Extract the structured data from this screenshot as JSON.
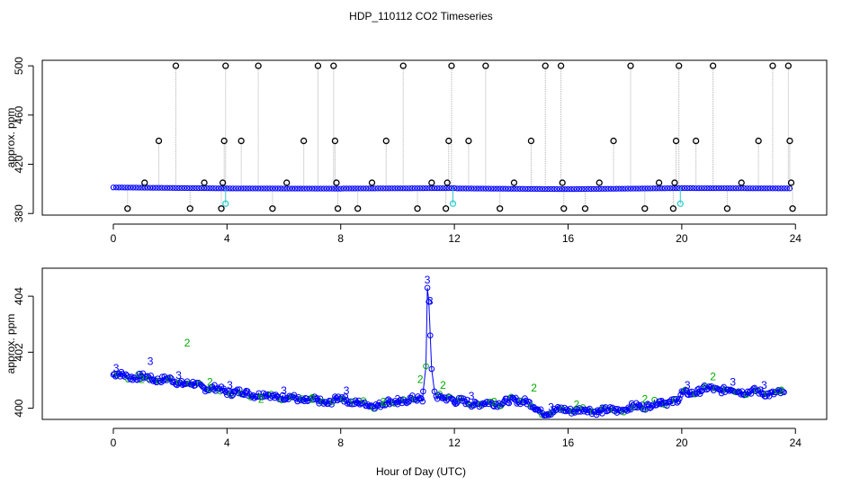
{
  "title": "HDP_110112  CO2 Timeseries",
  "colors": {
    "background": "#ffffff",
    "axis": "#000000",
    "spike_line": "#b0b0b0",
    "open_circle": "#000000",
    "series_main": "#0000ff",
    "series_alt": "#00aa00",
    "cyan_marker": "#33cccc"
  },
  "chart_data": [
    {
      "type": "scatter",
      "title": "",
      "xlabel": "",
      "ylabel": "approx. ppm",
      "xlim": [
        -2.5,
        25.1
      ],
      "ylim": [
        378.7,
        504.5
      ],
      "x_ticks": [
        0,
        4,
        8,
        12,
        16,
        20,
        24
      ],
      "y_ticks": [
        380,
        420,
        460,
        500
      ],
      "grid": false,
      "baseline_series": {
        "name": "ppm",
        "x_start": 0,
        "x_end": 23.8,
        "step": 0.1,
        "segments": [
          {
            "x0": 0,
            "x1": 4,
            "y0": 401.2,
            "y1": 400.4
          },
          {
            "x0": 4,
            "x1": 8,
            "y0": 400.4,
            "y1": 400.2
          },
          {
            "x0": 8,
            "x1": 12,
            "y0": 400.3,
            "y1": 400.6
          },
          {
            "x0": 12,
            "x1": 16,
            "y0": 400.4,
            "y1": 399.8
          },
          {
            "x0": 16,
            "x1": 20,
            "y0": 399.8,
            "y1": 400.6
          },
          {
            "x0": 20,
            "x1": 24,
            "y0": 400.6,
            "y1": 400.4
          }
        ]
      },
      "spikes": [
        {
          "x": 0.5,
          "y": 384
        },
        {
          "x": 1.1,
          "y": 405
        },
        {
          "x": 1.6,
          "y": 439
        },
        {
          "x": 2.2,
          "y": 500
        },
        {
          "x": 2.7,
          "y": 384
        },
        {
          "x": 3.2,
          "y": 405
        },
        {
          "x": 3.8,
          "y": 384
        },
        {
          "x": 3.85,
          "y": 405
        },
        {
          "x": 3.9,
          "y": 439
        },
        {
          "x": 3.95,
          "y": 500
        },
        {
          "x": 4.5,
          "y": 439
        },
        {
          "x": 5.1,
          "y": 500
        },
        {
          "x": 5.6,
          "y": 384
        },
        {
          "x": 6.1,
          "y": 405
        },
        {
          "x": 6.7,
          "y": 439
        },
        {
          "x": 7.2,
          "y": 500
        },
        {
          "x": 7.75,
          "y": 500
        },
        {
          "x": 7.8,
          "y": 439
        },
        {
          "x": 7.85,
          "y": 405
        },
        {
          "x": 7.9,
          "y": 384
        },
        {
          "x": 8.6,
          "y": 384
        },
        {
          "x": 9.1,
          "y": 405
        },
        {
          "x": 9.6,
          "y": 439
        },
        {
          "x": 10.2,
          "y": 500
        },
        {
          "x": 10.7,
          "y": 384
        },
        {
          "x": 11.2,
          "y": 405
        },
        {
          "x": 11.7,
          "y": 384
        },
        {
          "x": 11.75,
          "y": 405
        },
        {
          "x": 11.8,
          "y": 439
        },
        {
          "x": 11.9,
          "y": 500
        },
        {
          "x": 12.5,
          "y": 439
        },
        {
          "x": 13.1,
          "y": 500
        },
        {
          "x": 13.6,
          "y": 384
        },
        {
          "x": 14.1,
          "y": 405
        },
        {
          "x": 14.7,
          "y": 439
        },
        {
          "x": 15.2,
          "y": 500
        },
        {
          "x": 15.75,
          "y": 500
        },
        {
          "x": 15.8,
          "y": 405
        },
        {
          "x": 15.85,
          "y": 384
        },
        {
          "x": 16.6,
          "y": 384
        },
        {
          "x": 17.1,
          "y": 405
        },
        {
          "x": 17.6,
          "y": 439
        },
        {
          "x": 18.2,
          "y": 500
        },
        {
          "x": 18.7,
          "y": 384
        },
        {
          "x": 19.2,
          "y": 405
        },
        {
          "x": 19.7,
          "y": 384
        },
        {
          "x": 19.75,
          "y": 405
        },
        {
          "x": 19.8,
          "y": 439
        },
        {
          "x": 19.9,
          "y": 500
        },
        {
          "x": 20.5,
          "y": 439
        },
        {
          "x": 21.1,
          "y": 500
        },
        {
          "x": 21.6,
          "y": 384
        },
        {
          "x": 22.1,
          "y": 405
        },
        {
          "x": 22.7,
          "y": 439
        },
        {
          "x": 23.2,
          "y": 500
        },
        {
          "x": 23.75,
          "y": 500
        },
        {
          "x": 23.8,
          "y": 439
        },
        {
          "x": 23.85,
          "y": 405
        },
        {
          "x": 23.9,
          "y": 384
        }
      ],
      "cyan_points": [
        {
          "x": 3.95,
          "y": 388
        },
        {
          "x": 11.95,
          "y": 388
        },
        {
          "x": 19.95,
          "y": 388
        }
      ]
    },
    {
      "type": "scatter",
      "title": "",
      "xlabel": "Hour of Day (UTC)",
      "ylabel": "approx. ppm",
      "xlim": [
        -2.5,
        25.1
      ],
      "ylim": [
        399.6,
        405.0
      ],
      "x_ticks": [
        0,
        4,
        8,
        12,
        16,
        20,
        24
      ],
      "y_ticks": [
        400,
        402,
        404
      ],
      "grid": false,
      "series": [
        {
          "name": "3",
          "color": "#0000ff",
          "marker": "circle"
        },
        {
          "name": "2",
          "color": "#00aa00",
          "marker": "circle"
        }
      ],
      "trend": [
        {
          "x": 0,
          "y": 401.2
        },
        {
          "x": 2,
          "y": 401.0
        },
        {
          "x": 4,
          "y": 400.6
        },
        {
          "x": 6,
          "y": 400.4
        },
        {
          "x": 7.5,
          "y": 400.2
        },
        {
          "x": 8,
          "y": 400.35
        },
        {
          "x": 9,
          "y": 400.1
        },
        {
          "x": 10.5,
          "y": 400.3
        },
        {
          "x": 11.9,
          "y": 400.4
        },
        {
          "x": 12,
          "y": 400.25
        },
        {
          "x": 13,
          "y": 400.15
        },
        {
          "x": 14.5,
          "y": 400.3
        },
        {
          "x": 15,
          "y": 399.85
        },
        {
          "x": 16,
          "y": 399.95
        },
        {
          "x": 17.5,
          "y": 399.9
        },
        {
          "x": 19.9,
          "y": 400.3
        },
        {
          "x": 20,
          "y": 400.5
        },
        {
          "x": 21,
          "y": 400.7
        },
        {
          "x": 23.6,
          "y": 400.5
        }
      ],
      "spike_points": [
        {
          "x": 10.9,
          "y": 400.6
        },
        {
          "x": 11.0,
          "y": 401.5
        },
        {
          "x": 11.05,
          "y": 404.3
        },
        {
          "x": 11.1,
          "y": 403.8
        },
        {
          "x": 11.15,
          "y": 402.6
        },
        {
          "x": 11.2,
          "y": 401.4
        },
        {
          "x": 11.3,
          "y": 400.6
        }
      ],
      "labels": [
        {
          "text": "3",
          "x": 11.05,
          "y": 404.45,
          "series": "3"
        },
        {
          "text": "3",
          "x": 11.15,
          "y": 403.7,
          "series": "3"
        },
        {
          "text": "3",
          "x": 1.3,
          "y": 401.55,
          "series": "3"
        },
        {
          "text": "2",
          "x": 2.6,
          "y": 402.2,
          "series": "2"
        },
        {
          "text": "3",
          "x": 0.1,
          "y": 401.3,
          "series": "3"
        },
        {
          "text": "3",
          "x": 2.3,
          "y": 401.05,
          "series": "3"
        },
        {
          "text": "2",
          "x": 1.0,
          "y": 400.9,
          "series": "2"
        },
        {
          "text": "2",
          "x": 3.4,
          "y": 400.8,
          "series": "2"
        },
        {
          "text": "3",
          "x": 4.1,
          "y": 400.7,
          "series": "3"
        },
        {
          "text": "2",
          "x": 5.2,
          "y": 400.2,
          "series": "2"
        },
        {
          "text": "3",
          "x": 6.0,
          "y": 400.5,
          "series": "3"
        },
        {
          "text": "2",
          "x": 7.0,
          "y": 400.2,
          "series": "2"
        },
        {
          "text": "3",
          "x": 8.2,
          "y": 400.5,
          "series": "3"
        },
        {
          "text": "2",
          "x": 9.5,
          "y": 400.1,
          "series": "2"
        },
        {
          "text": "3",
          "x": 10.0,
          "y": 400.2,
          "series": "3"
        },
        {
          "text": "2",
          "x": 10.8,
          "y": 400.9,
          "series": "2"
        },
        {
          "text": "2",
          "x": 11.6,
          "y": 400.7,
          "series": "2"
        },
        {
          "text": "3",
          "x": 12.6,
          "y": 400.3,
          "series": "3"
        },
        {
          "text": "2",
          "x": 13.4,
          "y": 400.1,
          "series": "2"
        },
        {
          "text": "2",
          "x": 14.8,
          "y": 400.6,
          "series": "2"
        },
        {
          "text": "3",
          "x": 15.4,
          "y": 399.9,
          "series": "3"
        },
        {
          "text": "2",
          "x": 16.3,
          "y": 400.0,
          "series": "2"
        },
        {
          "text": "3",
          "x": 17.2,
          "y": 399.85,
          "series": "3"
        },
        {
          "text": "2",
          "x": 18.7,
          "y": 400.2,
          "series": "2"
        },
        {
          "text": "3",
          "x": 19.3,
          "y": 400.1,
          "series": "3"
        },
        {
          "text": "3",
          "x": 20.2,
          "y": 400.7,
          "series": "3"
        },
        {
          "text": "2",
          "x": 21.1,
          "y": 401.0,
          "series": "2"
        },
        {
          "text": "3",
          "x": 21.8,
          "y": 400.8,
          "series": "3"
        },
        {
          "text": "3",
          "x": 22.9,
          "y": 400.7,
          "series": "3"
        },
        {
          "text": "2",
          "x": 23.5,
          "y": 400.5,
          "series": "2"
        }
      ]
    }
  ]
}
